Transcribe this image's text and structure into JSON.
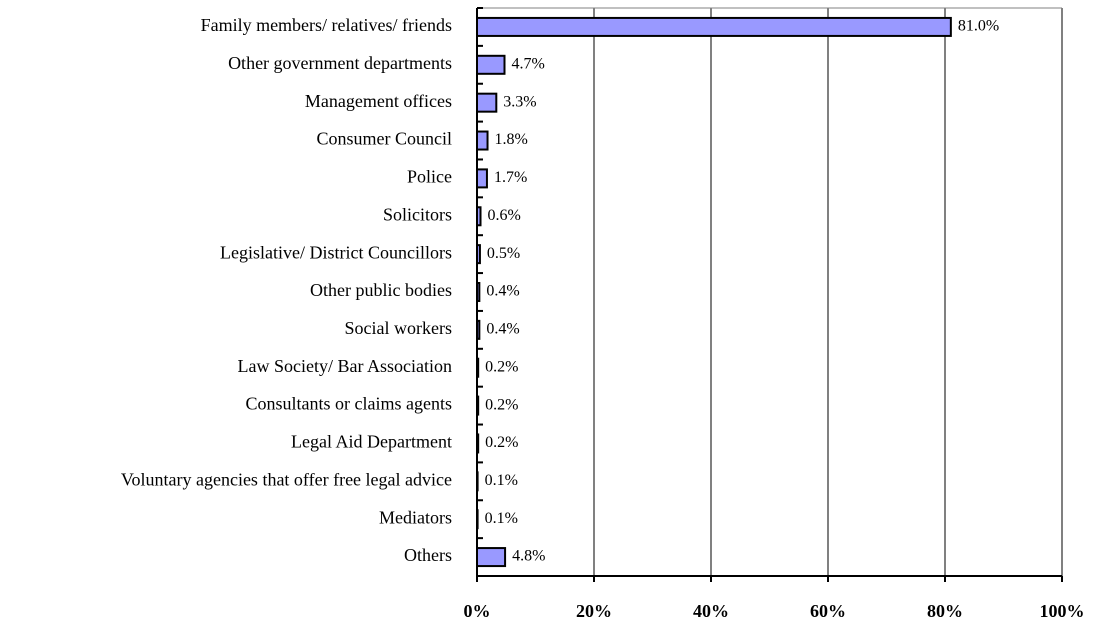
{
  "chart_data": {
    "type": "barh",
    "categories": [
      "Family members/ relatives/ friends",
      "Other government departments",
      "Management offices",
      "Consumer Council",
      "Police",
      "Solicitors",
      "Legislative/ District Councillors",
      "Other public bodies",
      "Social workers",
      "Law Society/ Bar Association",
      "Consultants or claims agents",
      "Legal Aid Department",
      "Voluntary agencies that offer free legal advice",
      "Mediators",
      "Others"
    ],
    "values": [
      81.0,
      4.7,
      3.3,
      1.8,
      1.7,
      0.6,
      0.5,
      0.4,
      0.4,
      0.2,
      0.2,
      0.2,
      0.1,
      0.1,
      4.8
    ],
    "value_labels": [
      "81.0%",
      "4.7%",
      "3.3%",
      "1.8%",
      "1.7%",
      "0.6%",
      "0.5%",
      "0.4%",
      "0.4%",
      "0.2%",
      "0.2%",
      "0.2%",
      "0.1%",
      "0.1%",
      "4.8%"
    ],
    "color": "#9999ff",
    "xlim": [
      0,
      100
    ],
    "xticks": [
      {
        "value": 0,
        "label": "0%"
      },
      {
        "value": 20,
        "label": "20%"
      },
      {
        "value": 40,
        "label": "40%"
      },
      {
        "value": 60,
        "label": "60%"
      },
      {
        "value": 80,
        "label": "80%"
      },
      {
        "value": 100,
        "label": "100%"
      }
    ],
    "grid": true
  }
}
